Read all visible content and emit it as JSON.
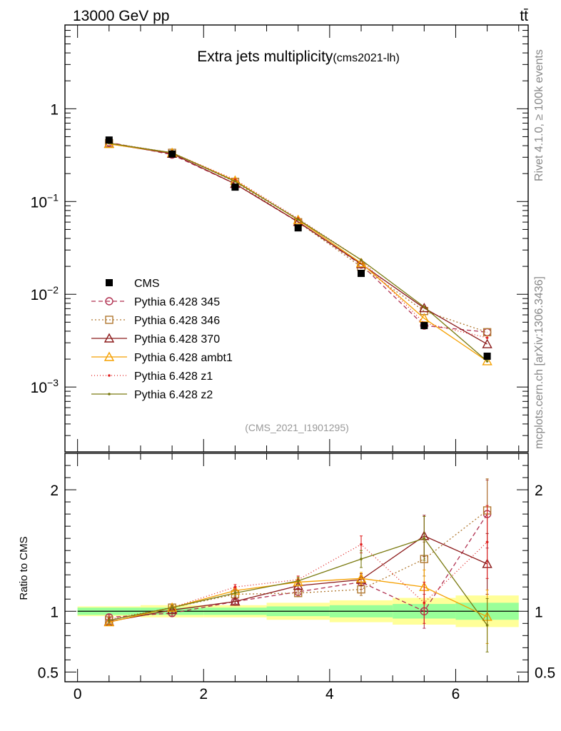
{
  "header": {
    "left": "13000 GeV pp",
    "right": "tt̄",
    "rivet": "Rivet 4.1.0, ≥ 100k events",
    "mcplots": "mcplots.cern.ch [arXiv:1306.3436]"
  },
  "chart_data": {
    "type": "line",
    "title": "Extra jets multiplicity",
    "title_suffix": "(cms2021-lh)",
    "watermark": "(CMS_2021_I1901295)",
    "main": {
      "yscale": "log",
      "ylim": [
        0.0002,
        8
      ],
      "xlim": [
        -0.2,
        7.15
      ],
      "ytick_labels": [
        {
          "value": 1,
          "base": "1",
          "exp": ""
        },
        {
          "value": 0.1,
          "base": "10",
          "exp": "−1"
        },
        {
          "value": 0.01,
          "base": "10",
          "exp": "−2"
        },
        {
          "value": 0.001,
          "base": "10",
          "exp": "−3"
        }
      ]
    },
    "ratio": {
      "ylabel": "Ratio to CMS",
      "ylim": [
        0.42,
        2.3
      ],
      "ytick_labels": [
        {
          "value": 2,
          "label": "2"
        },
        {
          "value": 1,
          "label": "1"
        },
        {
          "value": 0.5,
          "label": "0.5"
        }
      ]
    },
    "x": {
      "centers": [
        0.5,
        1.5,
        2.5,
        3.5,
        4.5,
        5.5,
        6.5
      ],
      "edges": [
        0,
        1,
        2,
        3,
        4,
        5,
        6,
        7
      ],
      "tick_labels": [
        {
          "value": 0,
          "label": "0"
        },
        {
          "value": 2,
          "label": "2"
        },
        {
          "value": 4,
          "label": "4"
        },
        {
          "value": 6,
          "label": "6"
        }
      ]
    },
    "cms": {
      "name": "CMS",
      "values": [
        0.46,
        0.325,
        0.143,
        0.052,
        0.0168,
        0.0046,
        0.00215
      ],
      "band_inner": [
        0.03,
        0.03,
        0.03,
        0.04,
        0.05,
        0.06,
        0.07
      ],
      "band_outer": [
        0.04,
        0.05,
        0.05,
        0.07,
        0.09,
        0.11,
        0.13
      ]
    },
    "series": [
      {
        "name": "Pythia 6.428 345",
        "color": "#b03050",
        "dash": "6,4",
        "marker": "circle",
        "values": [
          0.435,
          0.32,
          0.155,
          0.06,
          0.0209,
          0.0046,
          0.0039
        ],
        "ratio": [
          0.95,
          0.985,
          1.08,
          1.16,
          1.24,
          1.0,
          1.8
        ],
        "ratio_err": [
          0.02,
          0.02,
          0.02,
          0.03,
          0.06,
          0.14,
          0.28
        ]
      },
      {
        "name": "Pythia 6.428 346",
        "color": "#b07830",
        "dash": "2,3",
        "marker": "square",
        "values": [
          0.425,
          0.335,
          0.163,
          0.0598,
          0.0198,
          0.0066,
          0.0039
        ],
        "ratio": [
          0.925,
          1.03,
          1.14,
          1.15,
          1.18,
          1.43,
          1.83
        ],
        "ratio_err": [
          0.02,
          0.02,
          0.02,
          0.03,
          0.05,
          0.14,
          0.26
        ]
      },
      {
        "name": "Pythia 6.428 370",
        "color": "#8b1a1a",
        "dash": "",
        "marker": "triangle",
        "values": [
          0.42,
          0.328,
          0.155,
          0.0605,
          0.0212,
          0.0071,
          0.0029
        ],
        "ratio": [
          0.915,
          1.01,
          1.08,
          1.21,
          1.26,
          1.62,
          1.39
        ],
        "ratio_err": [
          0.02,
          0.02,
          0.02,
          0.03,
          0.05,
          0.17,
          0.25
        ]
      },
      {
        "name": "Pythia 6.428 ambt1",
        "color": "#f5a000",
        "dash": "",
        "marker": "triangle",
        "values": [
          0.417,
          0.335,
          0.168,
          0.0633,
          0.0217,
          0.0055,
          0.0019
        ],
        "ratio": [
          0.91,
          1.03,
          1.17,
          1.24,
          1.27,
          1.2,
          0.955
        ],
        "ratio_err": [
          0.02,
          0.02,
          0.02,
          0.03,
          0.05,
          0.14,
          0.22
        ]
      },
      {
        "name": "Pythia 6.428 z1",
        "color": "#e02020",
        "dash": "1,3",
        "marker": "dot",
        "values": [
          0.43,
          0.335,
          0.172,
          0.0655,
          0.0235,
          0.0049,
          0.0034
        ],
        "ratio": [
          0.935,
          1.03,
          1.2,
          1.26,
          1.55,
          1.07,
          1.57
        ],
        "ratio_err": [
          0.02,
          0.02,
          0.02,
          0.03,
          0.07,
          0.17,
          0.3
        ]
      },
      {
        "name": "Pythia 6.428 z2",
        "color": "#7a7a10",
        "dash": "",
        "marker": "dot",
        "values": [
          0.425,
          0.335,
          0.165,
          0.064,
          0.0235,
          0.0073,
          0.0019
        ],
        "ratio": [
          0.925,
          1.03,
          1.15,
          1.25,
          1.43,
          1.6,
          0.885
        ],
        "ratio_err": [
          0.02,
          0.02,
          0.02,
          0.03,
          0.07,
          0.18,
          0.22
        ]
      }
    ]
  }
}
